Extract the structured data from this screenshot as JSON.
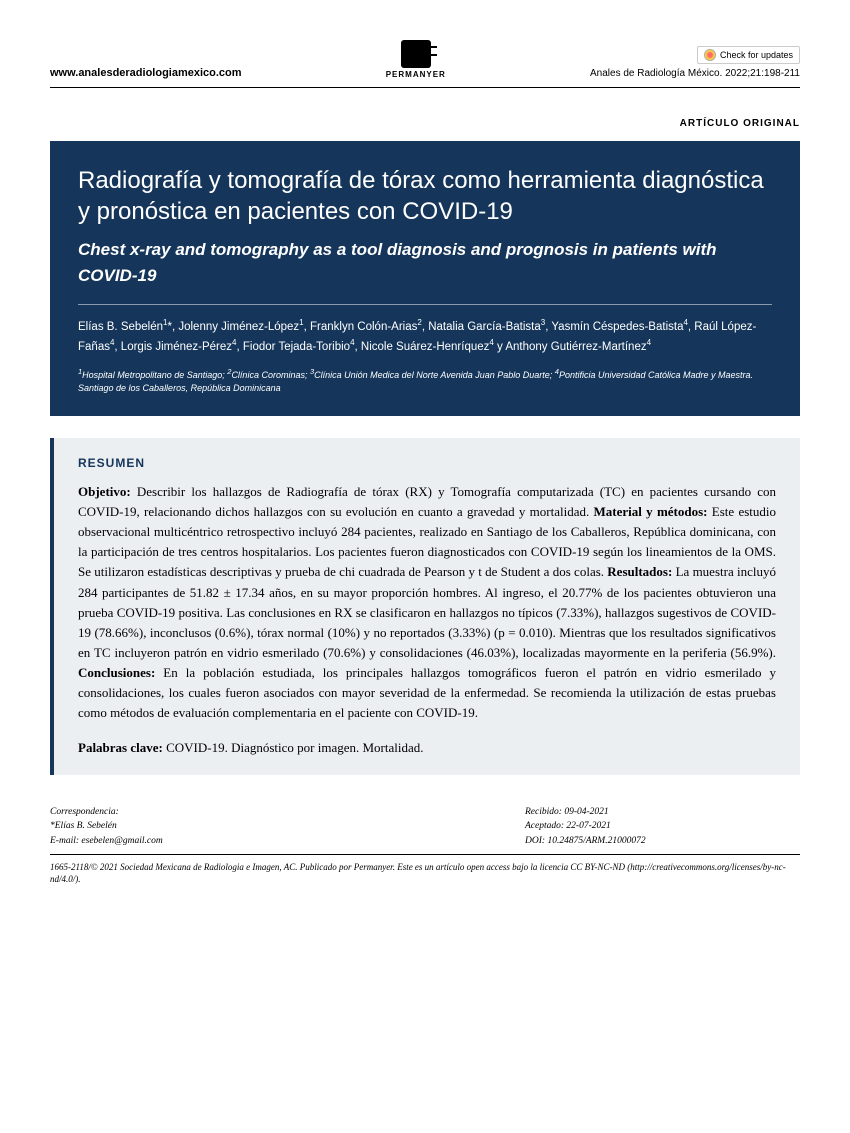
{
  "header": {
    "website": "www.analesderadiologiamexico.com",
    "publisher_label": "PERMANYER",
    "check_updates": "Check for updates",
    "citation": "Anales de Radiología México. 2022;21:198-211"
  },
  "article_type": "ARTÍCULO ORIGINAL",
  "title": {
    "main": "Radiografía y tomografía de tórax como herramienta diagnóstica y pronóstica en pacientes con COVID-19",
    "subtitle": "Chest x-ray and tomography as a tool diagnosis and prognosis in patients with COVID-19",
    "authors_html": "Elías B. Sebelén<sup>1</sup>*, Jolenny Jiménez-López<sup>1</sup>, Franklyn Colón-Arias<sup>2</sup>, Natalia García-Batista<sup>3</sup>, Yasmín Céspedes-Batista<sup>4</sup>, Raúl López-Fañas<sup>4</sup>, Lorgis Jiménez-Pérez<sup>4</sup>, Fiodor Tejada-Toribio<sup>4</sup>, Nicole Suárez-Henríquez<sup>4</sup> y Anthony Gutiérrez-Martínez<sup>4</sup>",
    "affiliations_html": "<sup>1</sup>Hospital Metropolitano de Santiago; <sup>2</sup>Clínica Corominas; <sup>3</sup>Clínica Unión Medica del Norte Avenida Juan Pablo Duarte; <sup>4</sup>Pontificia Universidad Católica Madre y Maestra. Santiago de los Caballeros, República Dominicana"
  },
  "abstract": {
    "heading": "RESUMEN",
    "body_html": "<b>Objetivo:</b> Describir los hallazgos de Radiografía de tórax (RX) y Tomografía computarizada (TC) en pacientes cursando con COVID-19, relacionando dichos hallazgos con su evolución en cuanto a gravedad y mortalidad. <b>Material y métodos:</b> Este estudio observacional multicéntrico retrospectivo incluyó 284 pacientes, realizado en Santiago de los Caballeros, República dominicana, con la participación de tres centros hospitalarios. Los pacientes fueron diagnosticados con COVID-19 según los lineamientos de la OMS. Se utilizaron estadísticas descriptivas y prueba de chi cuadrada de Pearson y t de Student a dos colas. <b>Resultados:</b> La muestra incluyó 284 participantes de 51.82 ± 17.34 años, en su mayor proporción hombres. Al ingreso, el 20.77% de los pacientes obtuvieron una prueba COVID-19 positiva. Las conclusiones en RX se clasificaron en hallazgos no típicos (7.33%), hallazgos sugestivos de COVID-19 (78.66%), inconclusos (0.6%), tórax normal (10%) y no reportados (3.33%) (p = 0.010). Mientras que los resultados significativos en TC incluyeron patrón en vidrio esmerilado (70.6%) y consolidaciones (46.03%), localizadas mayormente en la periferia (56.9%). <b>Conclusiones:</b> En la población estudiada, los principales hallazgos tomográficos fueron el patrón en vidrio esmerilado y consolidaciones, los cuales fueron asociados con mayor severidad de la enfermedad. Se recomienda la utilización de estas pruebas como métodos de evaluación complementaria en el paciente con COVID-19.",
    "keywords_label": "Palabras clave:",
    "keywords": "COVID-19. Diagnóstico por imagen. Mortalidad."
  },
  "footer": {
    "correspondence_label": "Correspondencia:",
    "correspondent": "*Elías B. Sebelén",
    "email_label": "E-mail:",
    "email": "esebelen@gmail.com",
    "received_label": "Recibido:",
    "received_date": "09-04-2021",
    "accepted_label": "Aceptado:",
    "accepted_date": "22-07-2021",
    "doi_label": "DOI:",
    "doi": "10.24875/ARM.21000072",
    "license": "1665-2118/© 2021 Sociedad Mexicana de Radiologia e Imagen, AC. Publicado por Permanyer. Este es un artículo open access bajo la licencia CC BY-NC-ND (http://creativecommons.org/licenses/by-nc-nd/4.0/)."
  },
  "colors": {
    "title_bg": "#15365a",
    "abstract_bg": "#eceff2"
  }
}
